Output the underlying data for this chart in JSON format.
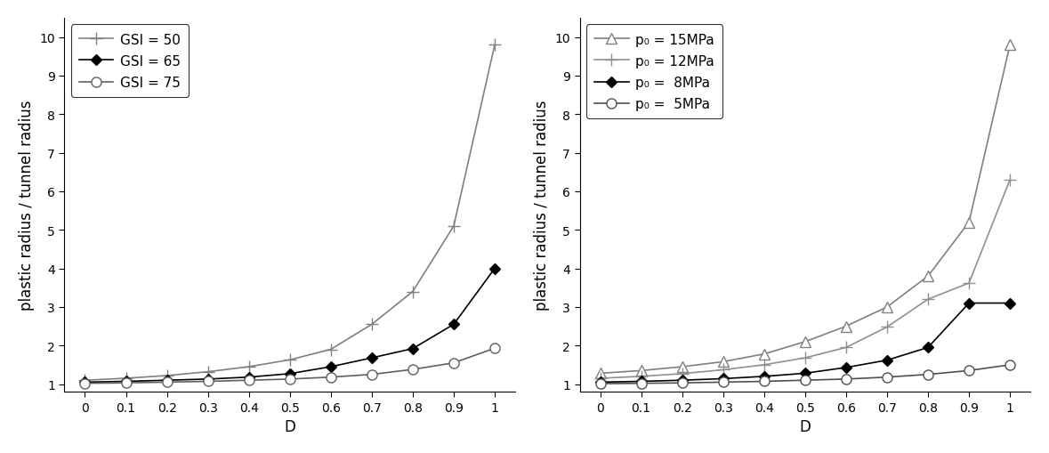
{
  "D": [
    0.0,
    0.1,
    0.2,
    0.3,
    0.4,
    0.5,
    0.6,
    0.7,
    0.8,
    0.9,
    1.0
  ],
  "left_plot": {
    "ylabel": "plastic radius / tunnel radius",
    "xlabel": "D",
    "ylim": [
      0.8,
      10.5
    ],
    "yticks": [
      1,
      2,
      3,
      4,
      5,
      6,
      7,
      8,
      9,
      10
    ],
    "series": [
      {
        "label": "GSI = 50",
        "marker": "plus",
        "color": "#808080",
        "values": [
          1.1,
          1.15,
          1.22,
          1.32,
          1.45,
          1.63,
          1.9,
          2.55,
          3.4,
          5.1,
          9.8
        ]
      },
      {
        "label": "GSI = 65",
        "marker": "diamond",
        "color": "#000000",
        "values": [
          1.05,
          1.07,
          1.1,
          1.13,
          1.18,
          1.27,
          1.45,
          1.68,
          1.92,
          2.55,
          4.0
        ]
      },
      {
        "label": "GSI = 75",
        "marker": "circle",
        "color": "#606060",
        "values": [
          1.02,
          1.03,
          1.05,
          1.07,
          1.1,
          1.13,
          1.18,
          1.25,
          1.38,
          1.55,
          1.93
        ]
      }
    ]
  },
  "right_plot": {
    "ylabel": "plastic radius / tunnel radius",
    "xlabel": "D",
    "ylim": [
      0.8,
      10.5
    ],
    "yticks": [
      1,
      2,
      3,
      4,
      5,
      6,
      7,
      8,
      9,
      10
    ],
    "series": [
      {
        "label": "p₀ = 15MPa",
        "marker": "triangle",
        "color": "#808080",
        "values": [
          1.28,
          1.35,
          1.45,
          1.58,
          1.78,
          2.1,
          2.5,
          3.0,
          3.8,
          5.2,
          9.8
        ]
      },
      {
        "label": "p₀ = 12MPa",
        "marker": "plus",
        "color": "#909090",
        "values": [
          1.15,
          1.2,
          1.27,
          1.37,
          1.5,
          1.68,
          1.95,
          2.48,
          3.2,
          3.62,
          6.3
        ]
      },
      {
        "label": "p₀ =  8MPa",
        "marker": "diamond",
        "color": "#000000",
        "values": [
          1.05,
          1.07,
          1.1,
          1.14,
          1.2,
          1.28,
          1.43,
          1.62,
          1.95,
          3.1,
          3.1
        ]
      },
      {
        "label": "p₀ =  5MPa",
        "marker": "circle",
        "color": "#505050",
        "values": [
          1.01,
          1.02,
          1.03,
          1.05,
          1.07,
          1.1,
          1.13,
          1.18,
          1.25,
          1.35,
          1.5
        ]
      }
    ]
  },
  "background_color": "#ffffff",
  "line_color": "#000000",
  "legend_fontsize": 11,
  "axis_fontsize": 12,
  "tick_fontsize": 10,
  "line_width": 1.2,
  "marker_size": 7
}
